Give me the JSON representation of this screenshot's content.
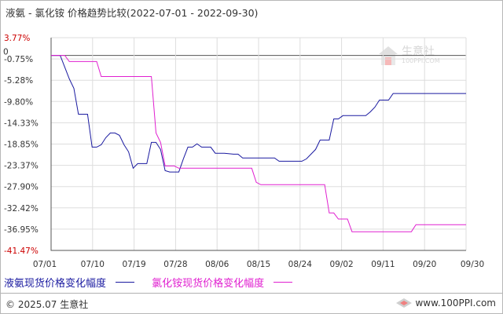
{
  "header": {
    "title": "液氨 - 氯化铵 价格趋势比较(2022-07-01 - 2022-09-30)"
  },
  "watermark": {
    "name": "生意社",
    "url": "100PPI.COM"
  },
  "footer": {
    "copyright": "© 2025.07 生意社",
    "site": "www.100PPI.com"
  },
  "colors": {
    "series_blue": "#1a1aa0",
    "series_magenta": "#e020d0",
    "grid": "#dddddd",
    "axis": "#333333",
    "extreme_labels": "#cc0000"
  },
  "chart_data": {
    "type": "line",
    "title": "液氨 - 氯化铵 价格趋势比较(2022-07-01 - 2022-09-30)",
    "xlabel": "",
    "ylabel": "",
    "x_range": [
      "2022-07-01",
      "2022-09-30"
    ],
    "ylim": [
      -41.47,
      3.77
    ],
    "x_ticks": [
      "07/01",
      "07/10",
      "07/19",
      "07/28",
      "08/06",
      "08/15",
      "08/24",
      "09/02",
      "09/11",
      "09/20",
      "09/30"
    ],
    "y_ticks": [
      "3.77%",
      "-0.75%",
      "-5.28%",
      "-9.80%",
      "-14.33%",
      "-18.85%",
      "-23.37%",
      "-27.90%",
      "-32.42%",
      "-36.95%",
      "-41.47%"
    ],
    "zero_label": "0",
    "grid": true,
    "legend_position": "bottom",
    "series": [
      {
        "name": "液氨现货价格变化幅度",
        "color": "#1a1aa0",
        "points": [
          [
            "2022-07-01",
            0
          ],
          [
            "2022-07-03",
            0
          ],
          [
            "2022-07-04",
            -2.5
          ],
          [
            "2022-07-05",
            -5
          ],
          [
            "2022-07-06",
            -7
          ],
          [
            "2022-07-07",
            -12.5
          ],
          [
            "2022-07-09",
            -12.5
          ],
          [
            "2022-07-10",
            -19.5
          ],
          [
            "2022-07-11",
            -19.5
          ],
          [
            "2022-07-12",
            -19
          ],
          [
            "2022-07-13",
            -17.5
          ],
          [
            "2022-07-14",
            -16.5
          ],
          [
            "2022-07-15",
            -16.5
          ],
          [
            "2022-07-16",
            -17
          ],
          [
            "2022-07-17",
            -19
          ],
          [
            "2022-07-18",
            -20.5
          ],
          [
            "2022-07-19",
            -24
          ],
          [
            "2022-07-20",
            -23
          ],
          [
            "2022-07-22",
            -23
          ],
          [
            "2022-07-23",
            -18.5
          ],
          [
            "2022-07-24",
            -18.5
          ],
          [
            "2022-07-25",
            -20
          ],
          [
            "2022-07-26",
            -24.5
          ],
          [
            "2022-07-27",
            -24.8
          ],
          [
            "2022-07-29",
            -24.8
          ],
          [
            "2022-07-30",
            -22
          ],
          [
            "2022-07-31",
            -19.5
          ],
          [
            "2022-08-01",
            -19.5
          ],
          [
            "2022-08-02",
            -18.8
          ],
          [
            "2022-08-03",
            -19.5
          ],
          [
            "2022-08-05",
            -19.5
          ],
          [
            "2022-08-06",
            -20.8
          ],
          [
            "2022-08-08",
            -20.8
          ],
          [
            "2022-08-10",
            -21
          ],
          [
            "2022-08-11",
            -21
          ],
          [
            "2022-08-12",
            -21.8
          ],
          [
            "2022-08-19",
            -21.8
          ],
          [
            "2022-08-20",
            -22.5
          ],
          [
            "2022-08-25",
            -22.5
          ],
          [
            "2022-08-26",
            -22
          ],
          [
            "2022-08-27",
            -21
          ],
          [
            "2022-08-28",
            -20
          ],
          [
            "2022-08-29",
            -18
          ],
          [
            "2022-08-31",
            -18
          ],
          [
            "2022-09-01",
            -13.5
          ],
          [
            "2022-09-02",
            -13.5
          ],
          [
            "2022-09-03",
            -12.8
          ],
          [
            "2022-09-08",
            -12.8
          ],
          [
            "2022-09-09",
            -12
          ],
          [
            "2022-09-10",
            -11
          ],
          [
            "2022-09-11",
            -9.5
          ],
          [
            "2022-09-13",
            -9.5
          ],
          [
            "2022-09-14",
            -8.1
          ],
          [
            "2022-09-30",
            -8.1
          ]
        ]
      },
      {
        "name": "氯化铵现货价格变化幅度",
        "color": "#e020d0",
        "points": [
          [
            "2022-07-01",
            0
          ],
          [
            "2022-07-04",
            0
          ],
          [
            "2022-07-05",
            -1.3
          ],
          [
            "2022-07-11",
            -1.3
          ],
          [
            "2022-07-12",
            -4.5
          ],
          [
            "2022-07-23",
            -4.5
          ],
          [
            "2022-07-24",
            -16.5
          ],
          [
            "2022-07-25",
            -18.5
          ],
          [
            "2022-07-26",
            -23.5
          ],
          [
            "2022-07-28",
            -23.5
          ],
          [
            "2022-07-29",
            -24
          ],
          [
            "2022-08-14",
            -24
          ],
          [
            "2022-08-15",
            -27
          ],
          [
            "2022-08-16",
            -27.5
          ],
          [
            "2022-08-30",
            -27.5
          ],
          [
            "2022-08-31",
            -33.5
          ],
          [
            "2022-09-01",
            -33.5
          ],
          [
            "2022-09-02",
            -34.8
          ],
          [
            "2022-09-04",
            -34.8
          ],
          [
            "2022-09-05",
            -37.5
          ],
          [
            "2022-09-18",
            -37.5
          ],
          [
            "2022-09-19",
            -36
          ],
          [
            "2022-09-30",
            -36
          ]
        ]
      }
    ]
  }
}
